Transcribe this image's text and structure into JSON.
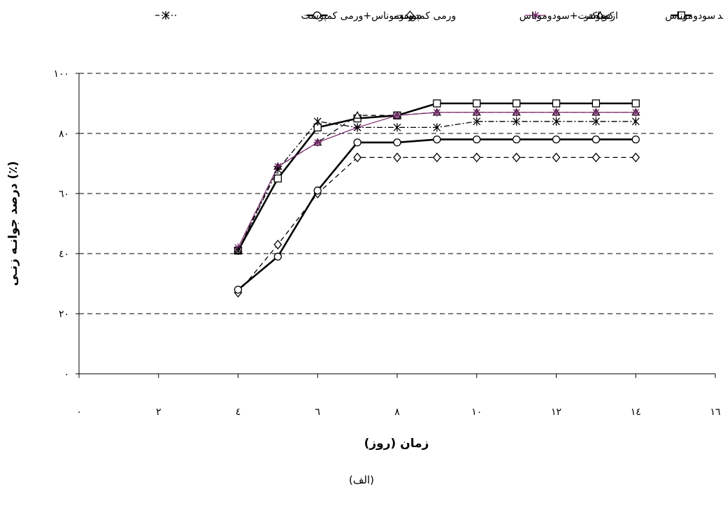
{
  "caption": "(الف)",
  "chart_data": {
    "type": "line",
    "xlabel": "زمان (روز)",
    "ylabel": "درصد جوانـه زنـی (٪)",
    "xlim": [
      0,
      16
    ],
    "ylim": [
      0,
      100
    ],
    "x_ticks": [
      0,
      2,
      4,
      6,
      8,
      10,
      12,
      14,
      16
    ],
    "x_tick_labels": [
      "٠",
      "٢",
      "٤",
      "٦",
      "٨",
      "١٠",
      "١٢",
      "١٤",
      "١٦"
    ],
    "y_ticks": [
      0,
      20,
      40,
      60,
      80,
      100
    ],
    "y_tick_labels": [
      "٠",
      "٢٠",
      "٤٠",
      "٦٠",
      "٨٠",
      "١٠٠"
    ],
    "grid": "horizontal dashed",
    "legend_position": "top",
    "x": [
      4,
      5,
      6,
      7,
      8,
      9,
      10,
      11,
      12,
      13,
      14
    ],
    "series": [
      {
        "name": "شاهد",
        "marker": "square",
        "line": "solid-thick",
        "color": "#000000",
        "values": [
          41,
          65,
          82,
          85,
          86,
          90,
          90,
          90,
          90,
          90,
          90
        ]
      },
      {
        "name": "سودوموناس",
        "marker": "triangle",
        "line": "dashed",
        "color": "#000000",
        "values": [
          41,
          69,
          77,
          86,
          86,
          87,
          87,
          87,
          87,
          87,
          87
        ]
      },
      {
        "name": "ازتوباکتر",
        "marker": "star",
        "line": "solid-thin",
        "color": "#7b2a6e",
        "values": [
          42,
          69,
          77,
          82,
          86,
          87,
          87,
          87,
          87,
          87,
          87
        ]
      },
      {
        "name": "کمپوست+سودوموناس",
        "marker": "diamond",
        "line": "dashed",
        "color": "#000000",
        "values": [
          27,
          43,
          60,
          72,
          72,
          72,
          72,
          72,
          72,
          72,
          72
        ]
      },
      {
        "name": "ورمی کمپوست",
        "marker": "circle",
        "line": "solid-thick",
        "color": "#000000",
        "values": [
          28,
          39,
          61,
          77,
          77,
          78,
          78,
          78,
          78,
          78,
          78
        ]
      },
      {
        "name": "سودوموناس+ورمی کمپوست",
        "marker": "asterisk",
        "line": "dashdot",
        "color": "#000000",
        "values": [
          41,
          68,
          84,
          82,
          82,
          82,
          84,
          84,
          84,
          84,
          84
        ]
      }
    ]
  }
}
